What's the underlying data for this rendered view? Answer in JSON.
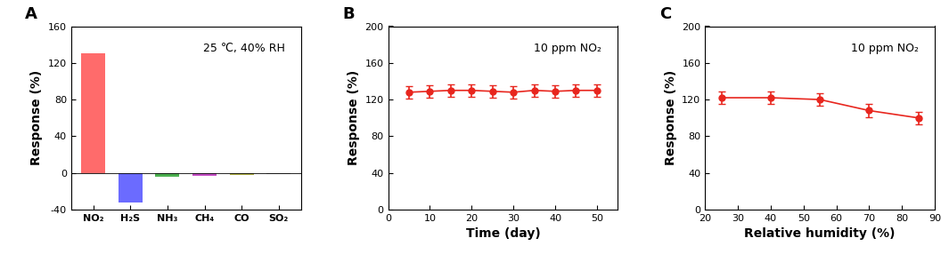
{
  "chart_data": [
    {
      "type": "bar",
      "title": "A",
      "annotations": [
        "25 ℃, 40% RH"
      ],
      "y_label": "Response (%)",
      "categories": [
        "NO₂",
        "H₂S",
        "NH₃",
        "CH₄",
        "CO",
        "SO₂"
      ],
      "values": [
        130,
        -32,
        -4,
        -3,
        -2,
        -1
      ],
      "colors": [
        "#ff6b6b",
        "#6b6bff",
        "#4caf50",
        "#c54fc5",
        "#b5b54a",
        "#9e9e9e"
      ],
      "ylim": [
        -40,
        160
      ],
      "yticks": [
        -40,
        0,
        40,
        80,
        120,
        160
      ]
    },
    {
      "type": "line",
      "title": "B",
      "annotations": [
        "10 ppm NO₂"
      ],
      "x_label": "Time (day)",
      "y_label": "Response (%)",
      "x": [
        5,
        10,
        15,
        20,
        25,
        30,
        35,
        40,
        45,
        50
      ],
      "values": [
        128,
        129,
        130,
        130,
        129,
        128,
        130,
        129,
        130,
        130
      ],
      "errors": [
        7,
        7,
        7,
        7,
        7,
        7,
        7,
        7,
        7,
        7
      ],
      "color": "#e8261e",
      "marker": "circle",
      "line_style": "solid",
      "xlim": [
        0,
        55
      ],
      "xticks": [
        0,
        10,
        20,
        30,
        40,
        50
      ],
      "ylim": [
        0,
        200
      ],
      "yticks": [
        0,
        40,
        80,
        120,
        160,
        200
      ]
    },
    {
      "type": "line",
      "title": "C",
      "annotations": [
        "10 ppm NO₂"
      ],
      "x_label": "Relative humidity (%)",
      "y_label": "Response (%)",
      "x": [
        25,
        40,
        55,
        70,
        85
      ],
      "values": [
        122,
        122,
        120,
        108,
        100
      ],
      "errors": [
        7,
        7,
        7,
        7,
        7
      ],
      "color": "#e8261e",
      "marker": "circle",
      "line_style": "solid",
      "xlim": [
        20,
        90
      ],
      "xticks": [
        20,
        30,
        40,
        50,
        60,
        70,
        80,
        90
      ],
      "ylim": [
        0,
        200
      ],
      "yticks": [
        0,
        40,
        80,
        120,
        160,
        200
      ]
    }
  ]
}
